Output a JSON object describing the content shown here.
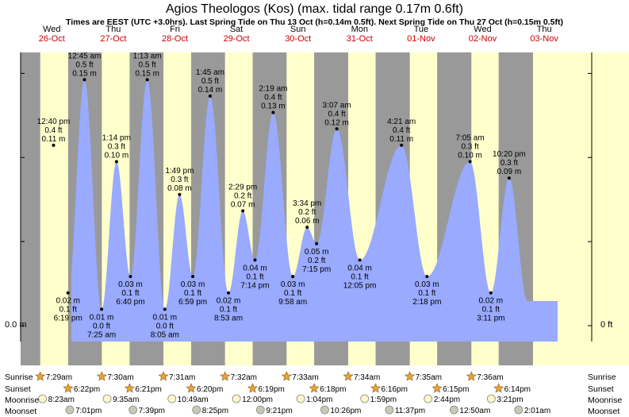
{
  "header": {
    "title": "Agios Theologos (Kos) (max. tidal range 0.17m 0.6ft)",
    "subtitle": "Times are EEST (UTC +3.0hrs). Last Spring Tide on Thu 13 Oct (h=0.14m 0.5ft). Next Spring Tide on Thu 27 Oct (h=0.15m 0.5ft)"
  },
  "colors": {
    "night": "#999999",
    "day": "#ffffcc",
    "tide_fill": "#99aaff",
    "weekday_label": "#000000",
    "date_label": "#cc0000"
  },
  "axes": {
    "left_label": "0.0 m",
    "right_label": "0 ft"
  },
  "days": [
    {
      "weekday": "Wed",
      "date": "26-Oct"
    },
    {
      "weekday": "Thu",
      "date": "27-Oct"
    },
    {
      "weekday": "Fri",
      "date": "28-Oct"
    },
    {
      "weekday": "Sat",
      "date": "29-Oct"
    },
    {
      "weekday": "Sun",
      "date": "30-Oct"
    },
    {
      "weekday": "Mon",
      "date": "31-Oct"
    },
    {
      "weekday": "Tue",
      "date": "01-Nov"
    },
    {
      "weekday": "Wed",
      "date": "02-Nov"
    },
    {
      "weekday": "Thu",
      "date": "03-Nov"
    }
  ],
  "chart_data": {
    "type": "area",
    "title": "Agios Theologos (Kos) (max. tidal range 0.17m 0.6ft)",
    "y_unit": "m",
    "ylim": [
      0,
      0.17
    ],
    "tide_events": [
      {
        "kind": "high",
        "time": "12:40 pm",
        "ft": "0.4 ft",
        "m": "0.11 m",
        "h": 0.11,
        "day": 0,
        "hour": 12.67
      },
      {
        "kind": "low",
        "time": "6:19 pm",
        "ft": "0.1 ft",
        "m": "0.02 m",
        "h": 0.02,
        "day": 0,
        "hour": 18.32
      },
      {
        "kind": "high",
        "time": "12:45 am",
        "ft": "0.5 ft",
        "m": "0.15 m",
        "h": 0.15,
        "day": 1,
        "hour": 0.75
      },
      {
        "kind": "low",
        "time": "7:25 am",
        "ft": "0.0 ft",
        "m": "0.01 m",
        "h": 0.01,
        "day": 1,
        "hour": 7.42
      },
      {
        "kind": "high",
        "time": "1:14 pm",
        "ft": "0.3 ft",
        "m": "0.10 m",
        "h": 0.1,
        "day": 1,
        "hour": 13.23
      },
      {
        "kind": "low",
        "time": "6:40 pm",
        "ft": "0.1 ft",
        "m": "0.03 m",
        "h": 0.03,
        "day": 1,
        "hour": 18.67
      },
      {
        "kind": "high",
        "time": "1:13 am",
        "ft": "0.5 ft",
        "m": "0.15 m",
        "h": 0.15,
        "day": 2,
        "hour": 1.22
      },
      {
        "kind": "low",
        "time": "8:05 am",
        "ft": "0.0 ft",
        "m": "0.01 m",
        "h": 0.01,
        "day": 2,
        "hour": 8.08
      },
      {
        "kind": "high",
        "time": "1:49 pm",
        "ft": "0.3 ft",
        "m": "0.08 m",
        "h": 0.08,
        "day": 2,
        "hour": 13.82
      },
      {
        "kind": "low",
        "time": "6:59 pm",
        "ft": "0.1 ft",
        "m": "0.03 m",
        "h": 0.03,
        "day": 2,
        "hour": 18.98
      },
      {
        "kind": "high",
        "time": "1:45 am",
        "ft": "0.5 ft",
        "m": "0.14 m",
        "h": 0.14,
        "day": 3,
        "hour": 1.75
      },
      {
        "kind": "low",
        "time": "8:53 am",
        "ft": "0.1 ft",
        "m": "0.02 m",
        "h": 0.02,
        "day": 3,
        "hour": 8.88
      },
      {
        "kind": "high",
        "time": "2:29 pm",
        "ft": "0.2 ft",
        "m": "0.07 m",
        "h": 0.07,
        "day": 3,
        "hour": 14.48
      },
      {
        "kind": "low",
        "time": "7:14 pm",
        "ft": "0.1 ft",
        "m": "0.04 m",
        "h": 0.04,
        "day": 3,
        "hour": 19.23
      },
      {
        "kind": "high",
        "time": "2:19 am",
        "ft": "0.4 ft",
        "m": "0.13 m",
        "h": 0.13,
        "day": 4,
        "hour": 2.32
      },
      {
        "kind": "low",
        "time": "9:58 am",
        "ft": "0.1 ft",
        "m": "0.03 m",
        "h": 0.03,
        "day": 4,
        "hour": 9.97
      },
      {
        "kind": "high",
        "time": "3:34 pm",
        "ft": "0.2 ft",
        "m": "0.06 m",
        "h": 0.06,
        "day": 4,
        "hour": 15.57
      },
      {
        "kind": "low",
        "time": "7:15 pm",
        "ft": "0.2 ft",
        "m": "0.05 m",
        "h": 0.05,
        "day": 4,
        "hour": 19.25
      },
      {
        "kind": "high",
        "time": "3:07 am",
        "ft": "0.4 ft",
        "m": "0.12 m",
        "h": 0.12,
        "day": 5,
        "hour": 3.12
      },
      {
        "kind": "low",
        "time": "12:05 pm",
        "ft": "0.1 ft",
        "m": "0.04 m",
        "h": 0.04,
        "day": 5,
        "hour": 12.08
      },
      {
        "kind": "high",
        "time": "4:21 am",
        "ft": "0.4 ft",
        "m": "0.11 m",
        "h": 0.11,
        "day": 6,
        "hour": 4.35
      },
      {
        "kind": "low",
        "time": "2:18 pm",
        "ft": "0.1 ft",
        "m": "0.03 m",
        "h": 0.03,
        "day": 6,
        "hour": 14.3
      },
      {
        "kind": "high",
        "time": "7:05 am",
        "ft": "0.3 ft",
        "m": "0.10 m",
        "h": 0.1,
        "day": 7,
        "hour": 7.08
      },
      {
        "kind": "low",
        "time": "3:11 pm",
        "ft": "0.1 ft",
        "m": "0.02 m",
        "h": 0.02,
        "day": 7,
        "hour": 15.18
      },
      {
        "kind": "high",
        "time": "10:20 pm",
        "ft": "0.3 ft",
        "m": "0.09 m",
        "h": 0.09,
        "day": 7,
        "hour": 22.33
      }
    ]
  },
  "astro": {
    "row_labels": {
      "sunrise": "Sunrise",
      "sunset": "Sunset",
      "moonrise": "Moonrise",
      "moonset": "Moonset"
    },
    "sunrise": [
      "7:29am",
      "7:30am",
      "7:31am",
      "7:32am",
      "7:33am",
      "7:34am",
      "7:35am",
      "7:36am"
    ],
    "sunset": [
      "6:22pm",
      "6:21pm",
      "6:20pm",
      "6:19pm",
      "6:18pm",
      "6:16pm",
      "6:15pm",
      "6:14pm"
    ],
    "moonrise": [
      "8:23am",
      "9:35am",
      "10:49am",
      "12:00pm",
      "1:04pm",
      "1:59pm",
      "2:44pm",
      "3:21pm"
    ],
    "moonset": [
      "7:01pm",
      "7:39pm",
      "8:25pm",
      "9:21pm",
      "10:26pm",
      "11:37pm",
      "12:50am",
      "2:01am"
    ]
  }
}
